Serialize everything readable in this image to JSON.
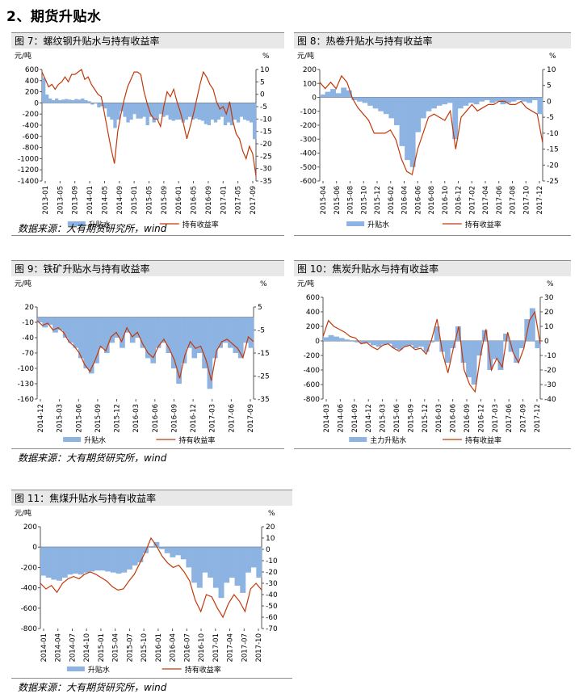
{
  "page": {
    "heading": "2、期货升贴水"
  },
  "source_note": "数据来源：大有期货研究所，wind",
  "colors": {
    "basis": "#8db3e2",
    "yield": "#c0390b",
    "axis": "#555555"
  },
  "chart_data": [
    {
      "id": "fig7",
      "type": "area",
      "title": "图 7：螺纹钢升贴水与持有收益率",
      "left_unit": "元/吨",
      "right_unit": "%",
      "left_ticks": [
        "600",
        "400",
        "200",
        "0",
        "-200",
        "-400",
        "-600",
        "-800",
        "-1000",
        "-1200",
        "-1400"
      ],
      "right_ticks": [
        "10",
        "5",
        "0",
        "-5",
        "-10",
        "-15",
        "-20",
        "-25",
        "-30",
        "-35"
      ],
      "left_range": [
        -1400,
        600
      ],
      "right_range": [
        -35,
        10
      ],
      "x_ticks": [
        "2013-01",
        "2013-05",
        "2013-09",
        "2014-01",
        "2014-05",
        "2014-09",
        "2015-01",
        "2015-05",
        "2015-09",
        "2016-01",
        "2016-05",
        "2016-09",
        "2017-01",
        "2017-05",
        "2017-09"
      ],
      "legend": [
        "升贴水",
        "持有收益率"
      ],
      "series": [
        {
          "name": "升贴水",
          "values": [
            450,
            150,
            80,
            50,
            80,
            50,
            60,
            70,
            60,
            50,
            70,
            60,
            80,
            50,
            30,
            -30,
            -10,
            -80,
            -60,
            -100,
            -250,
            -300,
            -450,
            -300,
            -150,
            -250,
            -350,
            -300,
            -200,
            -280,
            -280,
            -250,
            -400,
            -250,
            -350,
            -300,
            -200,
            -250,
            -220,
            -300,
            -320,
            -300,
            -300,
            -350,
            -300,
            -250,
            -300,
            -280,
            -300,
            -320,
            -380,
            -400,
            -300,
            -350,
            -300,
            -250,
            -400,
            -350,
            -400,
            -300,
            -350,
            -250,
            -300,
            -320,
            -350,
            -650
          ]
        },
        {
          "name": "持有收益率",
          "values": [
            9,
            6,
            3,
            4,
            2,
            4,
            5,
            7,
            5,
            8,
            8,
            9,
            10,
            6,
            7,
            4,
            2,
            0,
            -1,
            -8,
            -15,
            -22,
            -28,
            -15,
            -8,
            -2,
            3,
            6,
            9,
            9,
            8,
            1,
            -4,
            -8,
            -10,
            -10,
            -13,
            -5,
            1,
            -1,
            2,
            -3,
            -7,
            -12,
            -18,
            -13,
            -8,
            -2,
            4,
            9,
            7,
            4,
            2,
            -3,
            -6,
            -5,
            -8,
            -3,
            -11,
            -16,
            -18,
            -23,
            -26,
            -21,
            -24,
            -33
          ]
        }
      ]
    },
    {
      "id": "fig8",
      "type": "area",
      "title": "图 8：热卷升贴水与持有收益率",
      "left_unit": "元/吨",
      "right_unit": "%",
      "left_ticks": [
        "200",
        "100",
        "0",
        "-100",
        "-200",
        "-300",
        "-400",
        "-500",
        "-600"
      ],
      "right_ticks": [
        "10",
        "5",
        "0",
        "-5",
        "-10",
        "-15",
        "-20",
        "-25"
      ],
      "left_range": [
        -600,
        200
      ],
      "right_range": [
        -25,
        10
      ],
      "x_ticks": [
        "2015-04",
        "2015-06",
        "2015-08",
        "2015-10",
        "2015-12",
        "2016-02",
        "2016-04",
        "2016-06",
        "2016-08",
        "2016-10",
        "2016-12",
        "2017-02",
        "2017-04",
        "2017-06",
        "2017-08",
        "2017-10",
        "2017-12"
      ],
      "legend": [
        "升贴水",
        "持有收益率"
      ],
      "series": [
        {
          "name": "升贴水",
          "values": [
            20,
            40,
            60,
            30,
            70,
            50,
            -20,
            -30,
            -40,
            -60,
            -80,
            -100,
            -120,
            -150,
            -200,
            -350,
            -450,
            -500,
            -250,
            -150,
            -100,
            -80,
            -60,
            -50,
            -40,
            -300,
            -80,
            -60,
            -40,
            -50,
            -30,
            -20,
            -40,
            -30,
            -50,
            -40,
            -30,
            -20,
            -30,
            -40,
            -20,
            -120
          ]
        },
        {
          "name": "持有收益率",
          "values": [
            6,
            4,
            6,
            4,
            8,
            6,
            1,
            -2,
            -4,
            -6,
            -10,
            -10,
            -10,
            -9,
            -12,
            -18,
            -22,
            -23,
            -15,
            -10,
            -5,
            -4,
            -5,
            -6,
            -3,
            -15,
            -5,
            -3,
            -1,
            -3,
            -2,
            -1,
            -1,
            0,
            0,
            -1,
            -1,
            0,
            -2,
            -3,
            -4,
            -13
          ]
        }
      ]
    },
    {
      "id": "fig9",
      "type": "area",
      "title": "图 9：铁矿升贴水与持有收益率",
      "left_unit": "元/吨",
      "right_unit": "%",
      "left_ticks": [
        "20",
        "-10",
        "-40",
        "-70",
        "-100",
        "-130",
        "-160"
      ],
      "right_ticks": [
        "5",
        "-5",
        "-15",
        "-25",
        "-35"
      ],
      "left_range": [
        -160,
        20
      ],
      "right_range": [
        -35,
        5
      ],
      "x_ticks": [
        "2014-12",
        "2015-03",
        "2015-06",
        "2015-09",
        "2015-12",
        "2016-03",
        "2016-06",
        "2016-09",
        "2016-12",
        "2017-03",
        "2017-06",
        "2017-09"
      ],
      "legend": [
        "升贴水",
        "持有收益率"
      ],
      "series": [
        {
          "name": "升贴水",
          "values": [
            -10,
            -20,
            -15,
            -30,
            -25,
            -40,
            -50,
            -60,
            -80,
            -100,
            -110,
            -90,
            -60,
            -70,
            -50,
            -40,
            -60,
            -30,
            -50,
            -40,
            -60,
            -80,
            -90,
            -60,
            -50,
            -70,
            -100,
            -130,
            -90,
            -60,
            -80,
            -70,
            -100,
            -140,
            -80,
            -60,
            -50,
            -60,
            -70,
            -80,
            -50,
            -60
          ]
        },
        {
          "name": "持有收益率",
          "values": [
            -1,
            -3,
            -2,
            -5,
            -4,
            -6,
            -10,
            -12,
            -15,
            -20,
            -23,
            -18,
            -12,
            -14,
            -8,
            -6,
            -10,
            -4,
            -8,
            -6,
            -11,
            -15,
            -17,
            -12,
            -9,
            -13,
            -18,
            -26,
            -16,
            -10,
            -13,
            -12,
            -18,
            -27,
            -14,
            -10,
            -9,
            -11,
            -13,
            -17,
            -8,
            -10
          ]
        }
      ]
    },
    {
      "id": "fig10",
      "type": "area",
      "title": "图 10：焦炭升贴水与持有收益率",
      "left_unit": "元/吨",
      "right_unit": "%",
      "left_ticks": [
        "600",
        "400",
        "200",
        "0",
        "-200",
        "-400",
        "-600",
        "-800"
      ],
      "right_ticks": [
        "30",
        "20",
        "10",
        "0",
        "-10",
        "-20",
        "-30",
        "-40"
      ],
      "left_range": [
        -800,
        600
      ],
      "right_range": [
        -40,
        30
      ],
      "x_ticks": [
        "2014-03",
        "2014-06",
        "2014-09",
        "2014-12",
        "2015-03",
        "2015-06",
        "2015-09",
        "2015-12",
        "2016-03",
        "2016-06",
        "2016-09",
        "2016-12",
        "2017-03",
        "2017-06",
        "2017-09",
        "2017-12"
      ],
      "legend": [
        "主力升贴水",
        "持有收益率"
      ],
      "series": [
        {
          "name": "主力升贴水",
          "values": [
            50,
            80,
            60,
            40,
            20,
            -10,
            -20,
            -40,
            -30,
            -60,
            -80,
            -50,
            -40,
            -100,
            -120,
            -80,
            -60,
            -100,
            -80,
            -150,
            -20,
            200,
            -150,
            -300,
            -100,
            200,
            -300,
            -500,
            -600,
            -200,
            150,
            -400,
            -250,
            -400,
            100,
            -150,
            -300,
            -100,
            300,
            450,
            -100
          ]
        },
        {
          "name": "持有收益率",
          "values": [
            3,
            14,
            10,
            8,
            6,
            3,
            2,
            -2,
            -1,
            -4,
            -6,
            -3,
            -2,
            -5,
            -7,
            -4,
            -3,
            -6,
            -5,
            -9,
            1,
            15,
            -8,
            -22,
            -5,
            10,
            -20,
            -30,
            -35,
            -10,
            8,
            -20,
            -12,
            -18,
            6,
            -8,
            -15,
            -5,
            14,
            20,
            -2
          ]
        }
      ]
    },
    {
      "id": "fig11",
      "type": "area",
      "title": "图 11：焦煤升贴水与持有收益率",
      "left_unit": "元/吨",
      "right_unit": "%",
      "left_ticks": [
        "200",
        "0",
        "-200",
        "-400",
        "-600",
        "-800"
      ],
      "right_ticks": [
        "20",
        "10",
        "0",
        "-10",
        "-20",
        "-30",
        "-40",
        "-50",
        "-60",
        "-70"
      ],
      "left_range": [
        -800,
        200
      ],
      "right_range": [
        -70,
        20
      ],
      "x_ticks": [
        "2014-01",
        "2014-04",
        "2014-07",
        "2014-10",
        "2015-01",
        "2015-04",
        "2015-07",
        "2015-10",
        "2016-01",
        "2016-04",
        "2016-07",
        "2016-10",
        "2017-01",
        "2017-04",
        "2017-07",
        "2017-10"
      ],
      "legend": [
        "升贴水",
        "持有收益率"
      ],
      "series": [
        {
          "name": "升贴水",
          "values": [
            -280,
            -300,
            -320,
            -330,
            -300,
            -270,
            -260,
            -270,
            -250,
            -240,
            -230,
            -230,
            -240,
            -250,
            -260,
            -250,
            -220,
            -180,
            -150,
            -60,
            10,
            50,
            -20,
            -60,
            -100,
            -80,
            -120,
            -200,
            -350,
            -400,
            -250,
            -300,
            -400,
            -500,
            -350,
            -300,
            -380,
            -450,
            -250,
            -200,
            -300
          ]
        },
        {
          "name": "持有收益率",
          "values": [
            -30,
            -35,
            -32,
            -38,
            -30,
            -26,
            -24,
            -26,
            -22,
            -20,
            -22,
            -25,
            -28,
            -33,
            -36,
            -35,
            -28,
            -22,
            -12,
            -2,
            10,
            3,
            -6,
            -12,
            -16,
            -14,
            -20,
            -28,
            -45,
            -55,
            -40,
            -42,
            -52,
            -60,
            -48,
            -40,
            -46,
            -55,
            -35,
            -30,
            -36
          ]
        }
      ]
    }
  ]
}
